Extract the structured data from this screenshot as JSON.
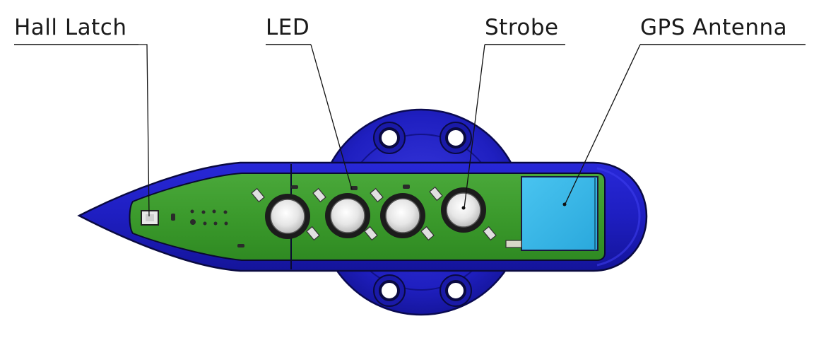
{
  "labels": {
    "hall_latch": "Hall Latch",
    "led": "LED",
    "strobe": "Strobe",
    "gps_antenna": "GPS Antenna"
  },
  "colors": {
    "housing_blue": "#2020c8",
    "housing_dark": "#0c0c6a",
    "pcb_green": "#3e9a2c",
    "antenna_cyan": "#3ab8ea",
    "line": "#111111"
  }
}
